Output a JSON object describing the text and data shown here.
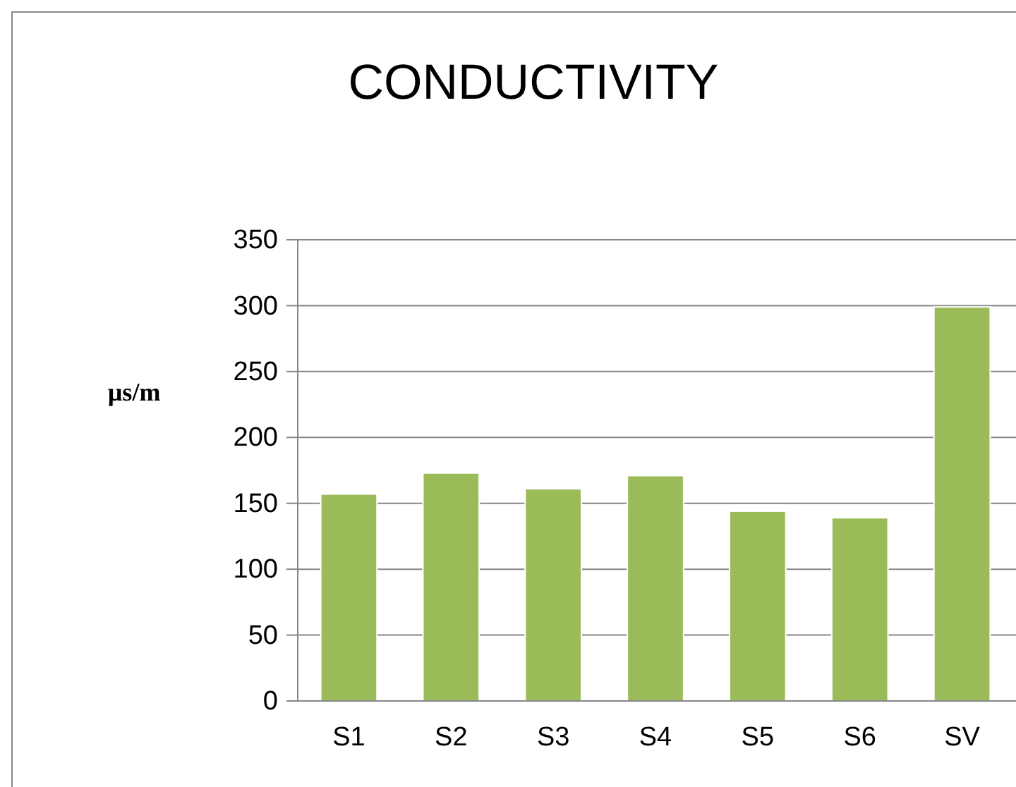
{
  "chart_data": {
    "type": "bar",
    "title": "CONDUCTIVITY",
    "ylabel": "µs/m",
    "categories": [
      "S1",
      "S2",
      "S3",
      "S4",
      "S5",
      "S6",
      "SV"
    ],
    "values": [
      157,
      173,
      161,
      171,
      144,
      139,
      299
    ],
    "color": "#9bbb59",
    "ylim": [
      0,
      350
    ],
    "yticks": [
      0,
      50,
      100,
      150,
      200,
      250,
      300,
      350
    ],
    "grid": "y"
  }
}
